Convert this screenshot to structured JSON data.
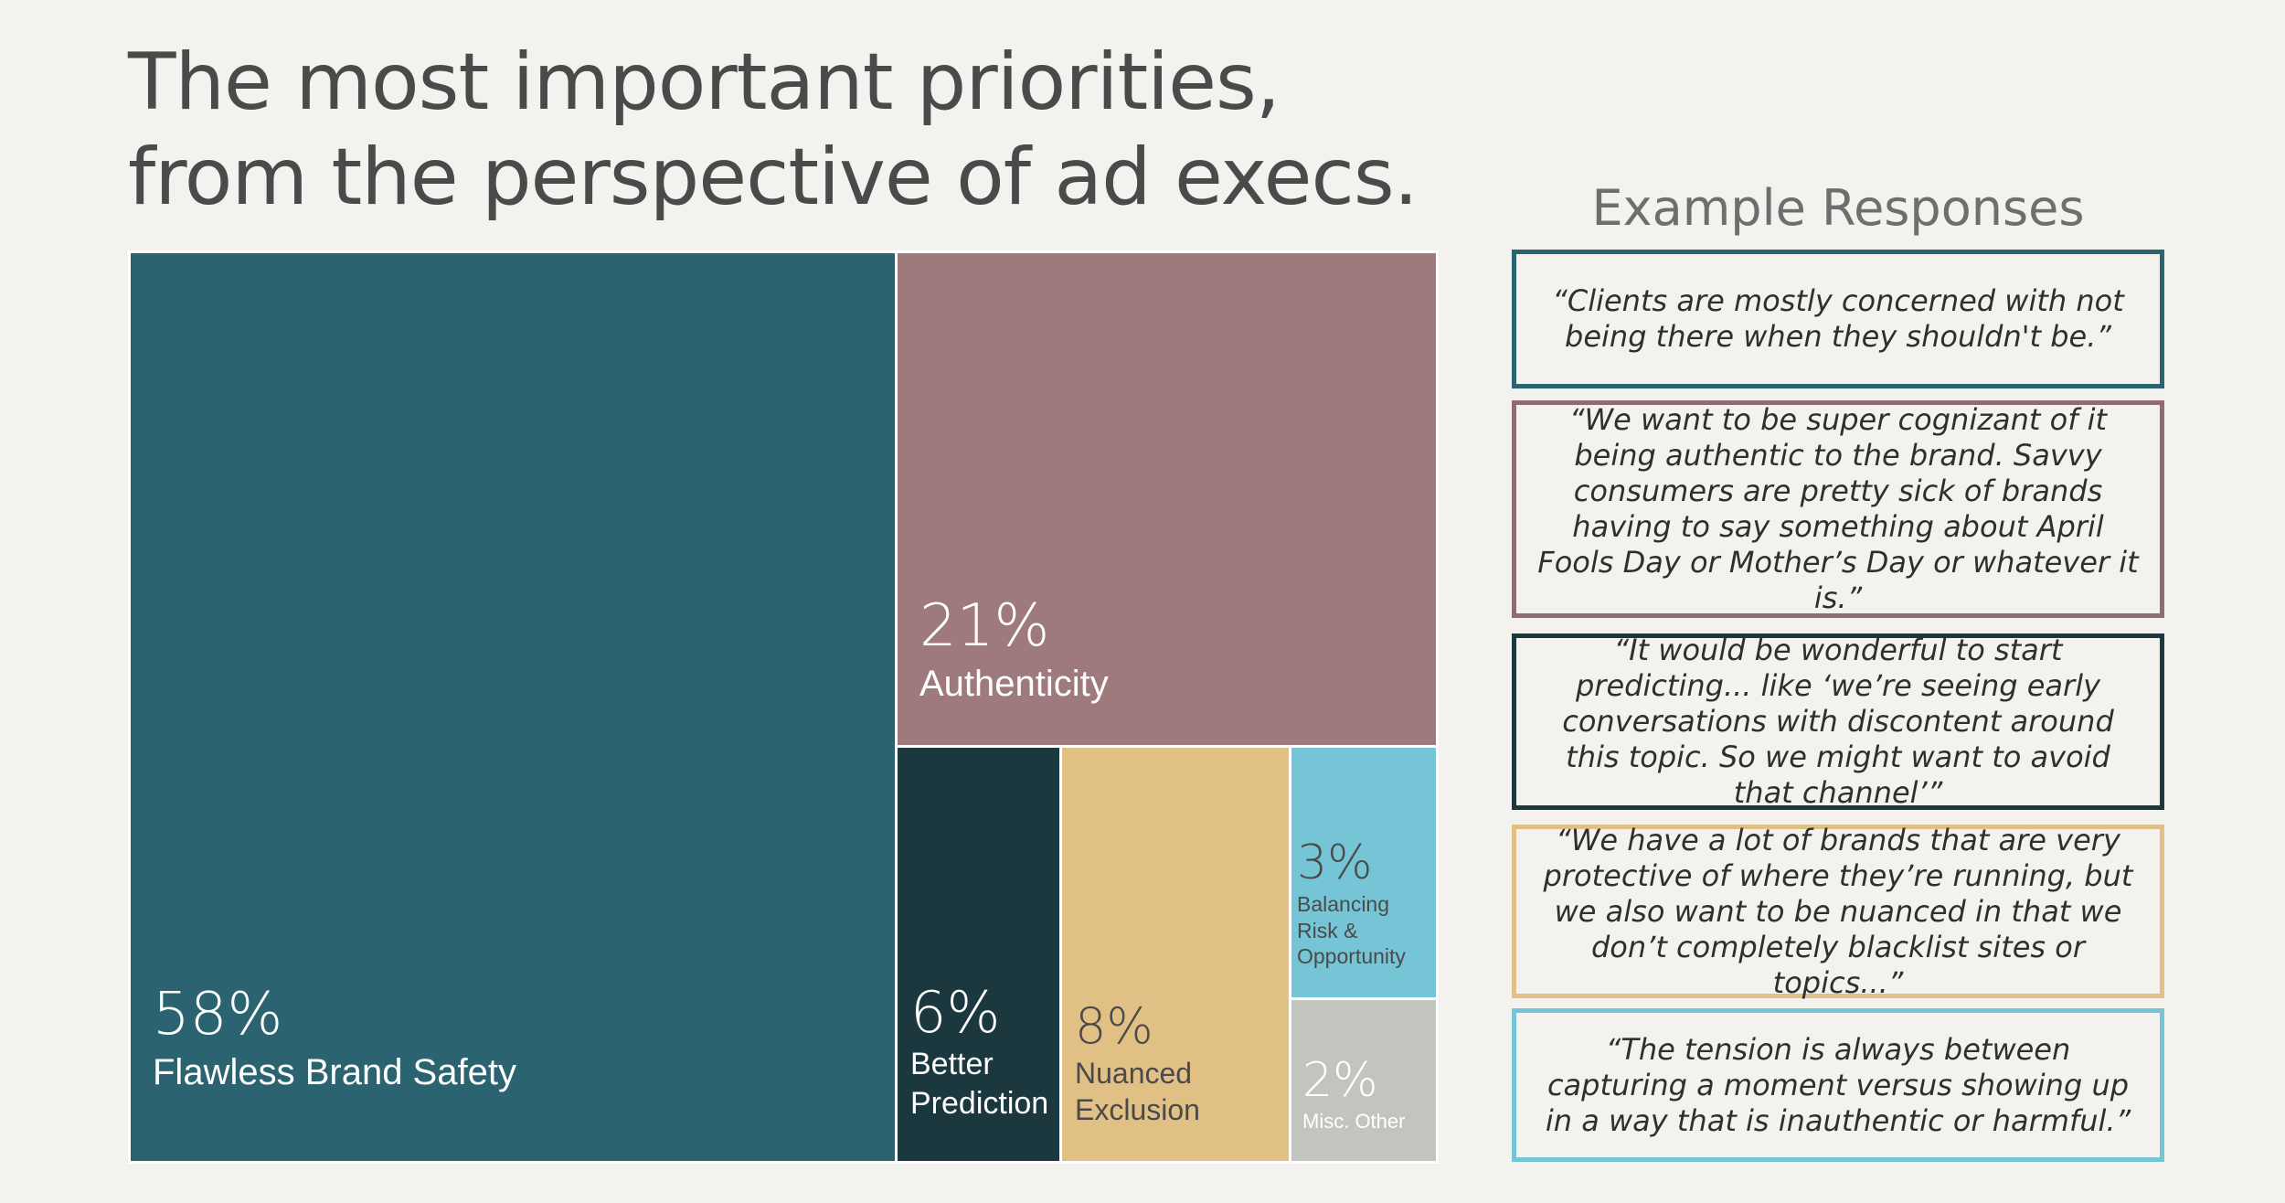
{
  "title_lines": [
    "The most important priorities,",
    "from the perspective of ad execs."
  ],
  "chart_data": {
    "type": "treemap",
    "items": [
      {
        "label": "Flawless Brand Safety",
        "value_label": "58%",
        "value": 58,
        "color": "#2b6470",
        "text_color": "#ffffff"
      },
      {
        "label": "Authenticity",
        "value_label": "21%",
        "value": 21,
        "color": "#9e7a7d",
        "text_color": "#ffffff"
      },
      {
        "label": "Better Prediction",
        "value_label": "6%",
        "value": 6,
        "color": "#1b383f",
        "text_color": "#ffffff"
      },
      {
        "label": "Nuanced Exclusion",
        "value_label": "8%",
        "value": 8,
        "color": "#e1c086",
        "text_color": "#4a4a4a"
      },
      {
        "label": "Balancing Risk & Opportunity",
        "value_label": "3%",
        "value": 3,
        "color": "#76c5d6",
        "text_color": "#4a4a4a"
      },
      {
        "label": "Misc. Other",
        "value_label": "2%",
        "value": 2,
        "color": "#c3c4be",
        "text_color": "#ffffff"
      }
    ]
  },
  "examples": {
    "title": "Example Responses",
    "quotes": [
      {
        "text": "“Clients are mostly concerned with not being there when they shouldn't be.”",
        "border_color": "#2b6470"
      },
      {
        "text": "“We want to be super cognizant of it being authentic to the brand. Savvy consumers are pretty sick of brands having to say something about April Fools Day or Mother’s Day or whatever it is.”",
        "border_color": "#8e6c70"
      },
      {
        "text": "“It would be wonderful to start predicting... like ‘we’re seeing early conversations with discontent around this topic. So we might want to avoid that channel’”",
        "border_color": "#1b383f"
      },
      {
        "text": "“We have a lot of brands that are very protective of where they’re running, but we also want to be nuanced in that we don’t completely blacklist sites or topics...”",
        "border_color": "#e1c086"
      },
      {
        "text": "“The tension is always between capturing a moment versus showing up in a way that is inauthentic or harmful.”",
        "border_color": "#76c5d6"
      }
    ]
  }
}
